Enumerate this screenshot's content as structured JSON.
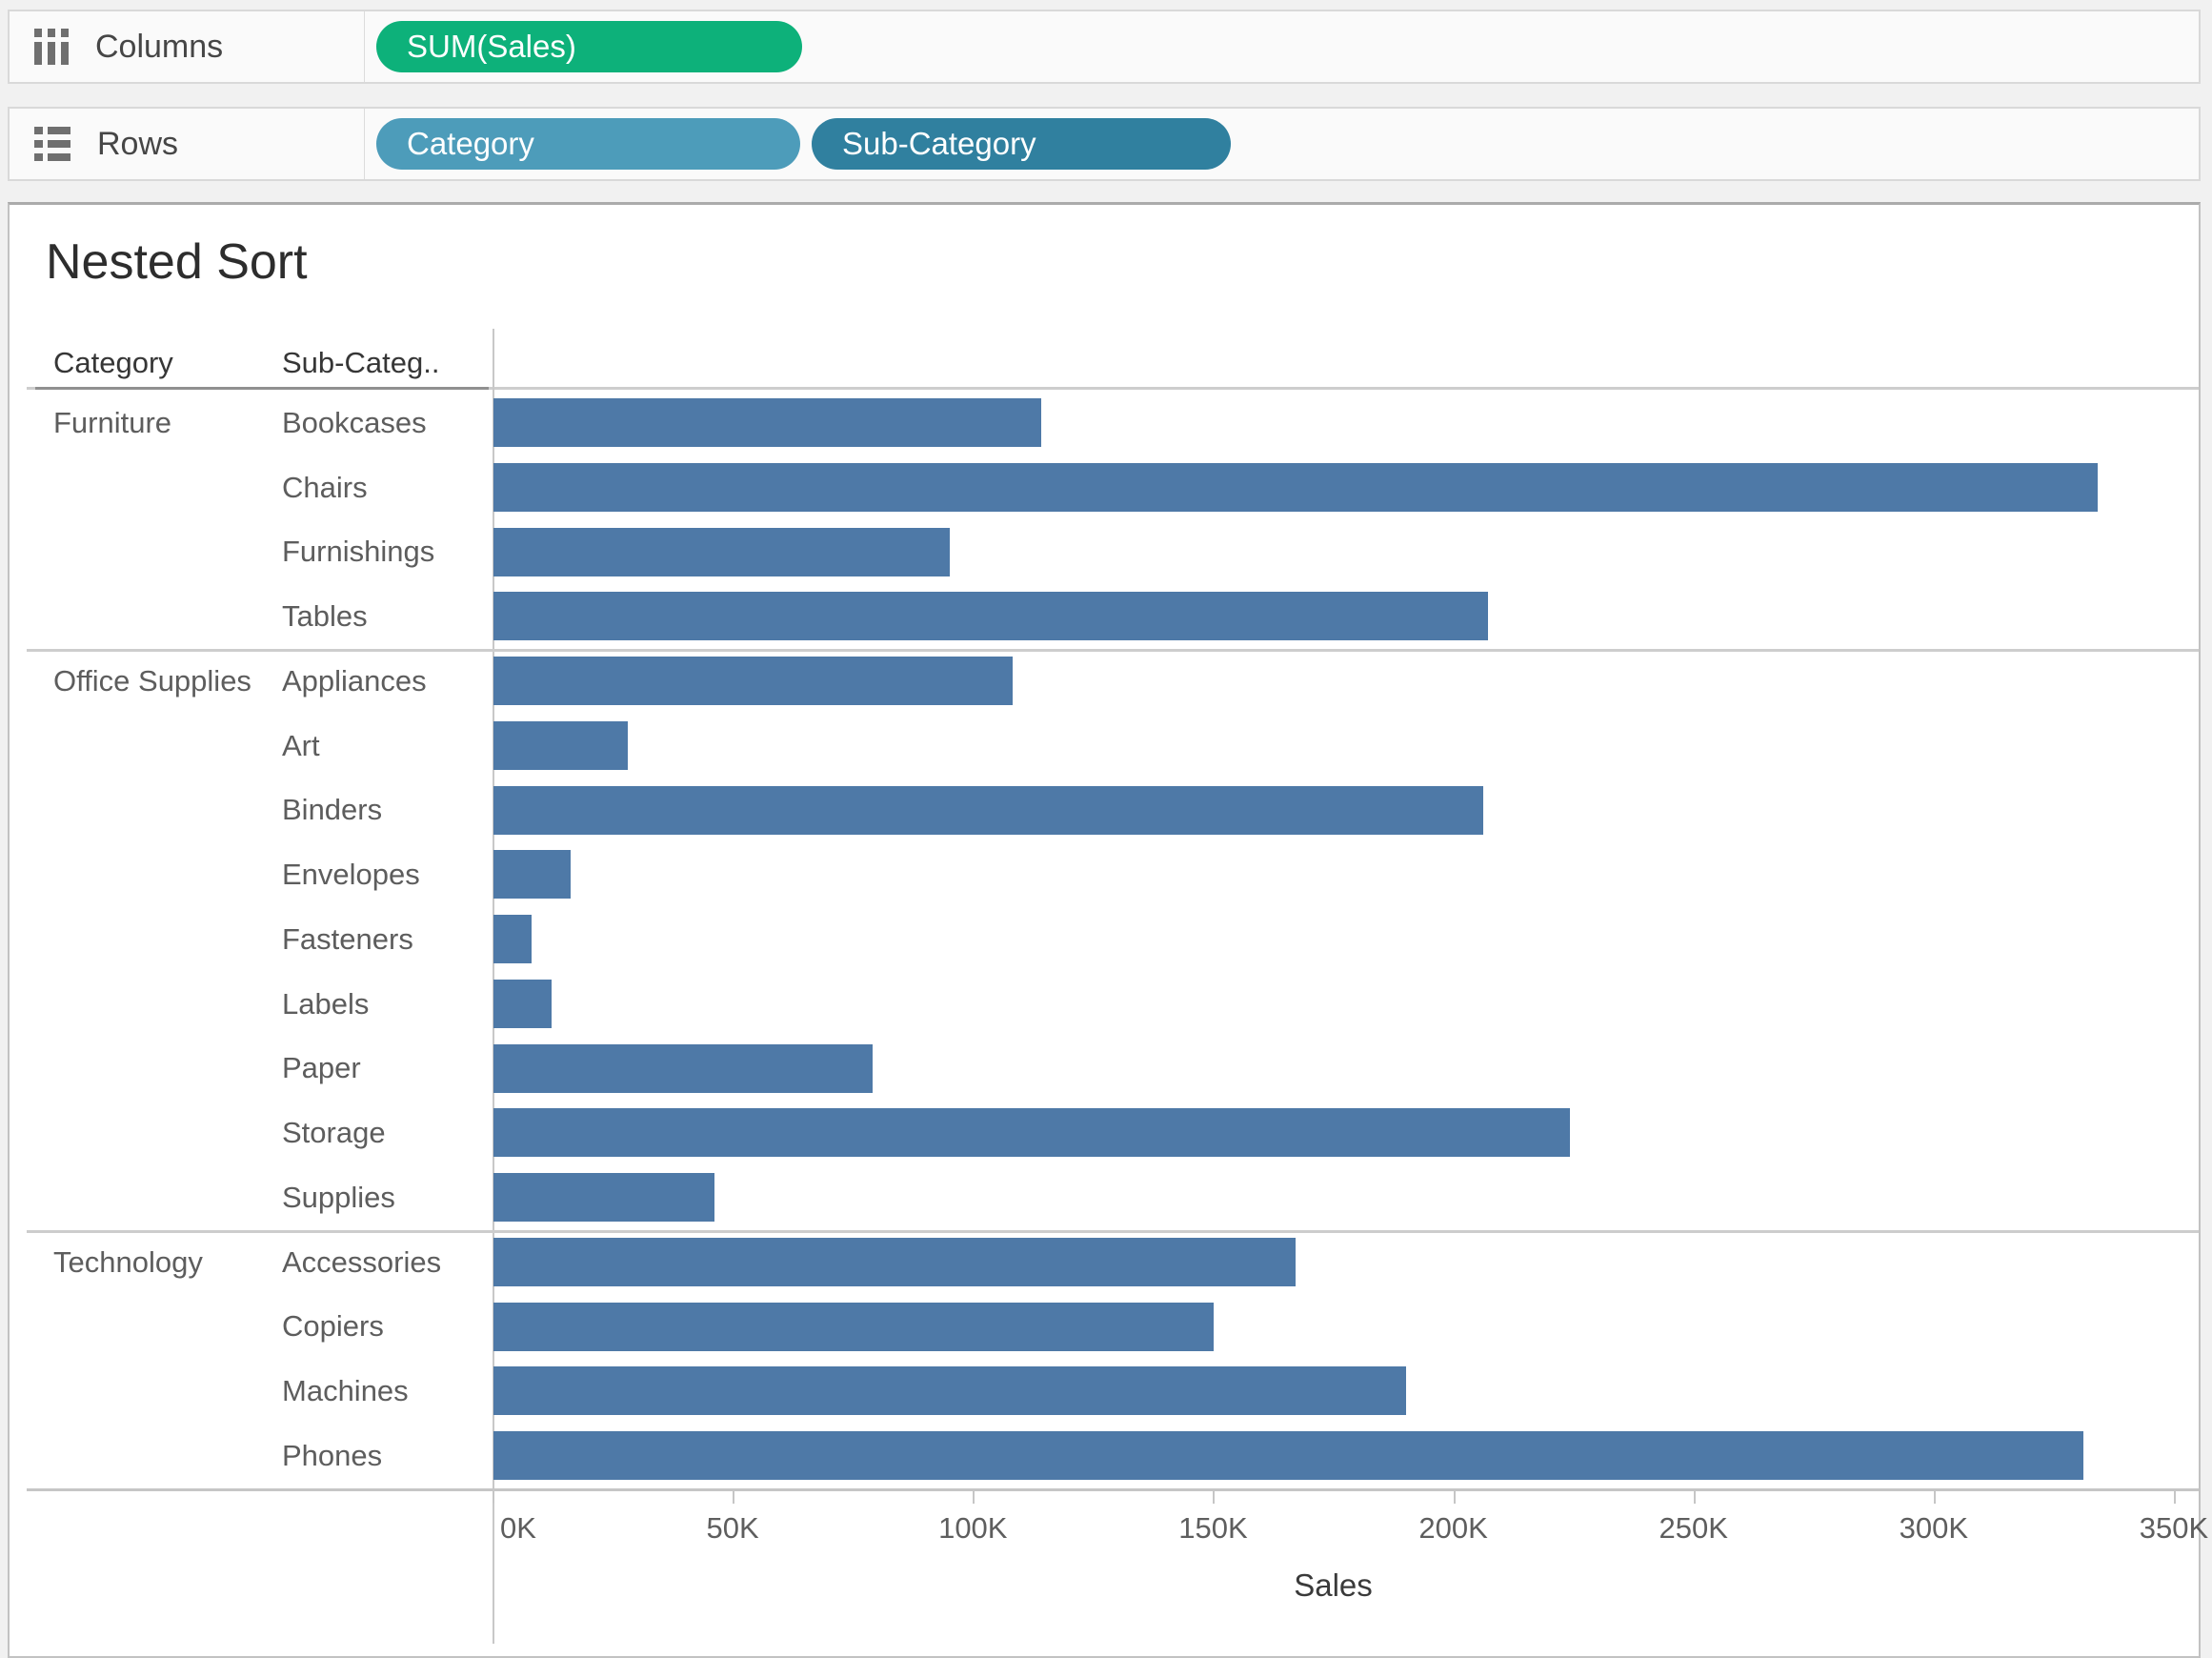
{
  "shelves": {
    "columns": {
      "label": "Columns",
      "pills": [
        {
          "label": "SUM(Sales)",
          "type": "measure",
          "color": "#0db17a"
        }
      ]
    },
    "rows": {
      "label": "Rows",
      "pills": [
        {
          "label": "Category",
          "type": "dimension",
          "color": "#4d9cba"
        },
        {
          "label": "Sub-Category",
          "type": "dimension",
          "color": "#30809f"
        }
      ]
    }
  },
  "sheet": {
    "title": "Nested Sort",
    "column_headers": {
      "category": "Category",
      "subcategory": "Sub-Categ.."
    }
  },
  "chart_data": {
    "type": "bar",
    "orientation": "horizontal",
    "title": "Nested Sort",
    "xlabel": "Sales",
    "ylabel": "Category / Sub-Category",
    "grid": false,
    "bar_color": "#4e79a7",
    "x_axis": {
      "min": 0,
      "max": 350000,
      "tick_interval": 50000,
      "tick_labels": [
        "0K",
        "50K",
        "100K",
        "150K",
        "200K",
        "250K",
        "300K",
        "350K"
      ]
    },
    "groups": [
      {
        "category": "Furniture",
        "rows": [
          {
            "label": "Bookcases",
            "value": 114000
          },
          {
            "label": "Chairs",
            "value": 334000
          },
          {
            "label": "Furnishings",
            "value": 95000
          },
          {
            "label": "Tables",
            "value": 207000
          }
        ]
      },
      {
        "category": "Office Supplies",
        "rows": [
          {
            "label": "Appliances",
            "value": 108000
          },
          {
            "label": "Art",
            "value": 28000
          },
          {
            "label": "Binders",
            "value": 206000
          },
          {
            "label": "Envelopes",
            "value": 16000
          },
          {
            "label": "Fasteners",
            "value": 8000
          },
          {
            "label": "Labels",
            "value": 12000
          },
          {
            "label": "Paper",
            "value": 79000
          },
          {
            "label": "Storage",
            "value": 224000
          },
          {
            "label": "Supplies",
            "value": 46000
          }
        ]
      },
      {
        "category": "Technology",
        "rows": [
          {
            "label": "Accessories",
            "value": 167000
          },
          {
            "label": "Copiers",
            "value": 150000
          },
          {
            "label": "Machines",
            "value": 190000
          },
          {
            "label": "Phones",
            "value": 331000
          }
        ]
      }
    ]
  }
}
